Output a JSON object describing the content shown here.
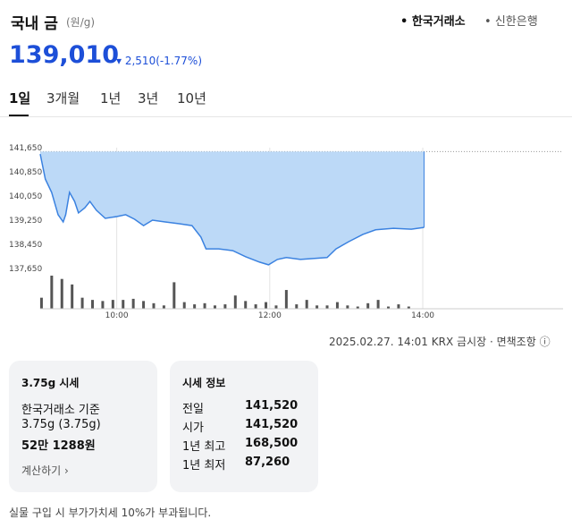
{
  "header": {
    "title": "국내 금",
    "unit": "(원/g)",
    "sources": [
      "한국거래소",
      "신한은행"
    ]
  },
  "price": {
    "value": "139,010",
    "change": "2,510",
    "change_pct": "(-1.77%)"
  },
  "tabs": [
    "1일",
    "3개월",
    "1년",
    "3년",
    "10년"
  ],
  "chart_data": {
    "type": "area",
    "color": "#3b82e0",
    "fill": "#bcd9f7",
    "x": [
      540,
      544,
      549,
      554,
      558,
      560,
      563,
      567,
      570,
      575,
      579,
      584,
      591,
      600,
      607,
      614,
      621,
      628,
      638,
      649,
      659,
      666,
      670,
      680,
      691,
      701,
      712,
      719,
      726,
      733,
      744,
      754,
      765,
      772,
      782,
      793,
      803,
      817,
      831,
      841
    ],
    "values": [
      141440,
      140610,
      140170,
      139430,
      139190,
      139430,
      140170,
      139870,
      139490,
      139660,
      139870,
      139580,
      139310,
      139370,
      139430,
      139280,
      139070,
      139250,
      139190,
      139130,
      139070,
      138690,
      138300,
      138300,
      138240,
      138040,
      137860,
      137770,
      137950,
      138010,
      137950,
      137980,
      138010,
      138300,
      138540,
      138780,
      138930,
      138980,
      138950,
      139010
    ],
    "reference_line": 141520,
    "xlim": [
      540,
      950
    ],
    "xticks": [
      {
        "value": 600,
        "label": "10:00"
      },
      {
        "value": 720,
        "label": "12:00"
      },
      {
        "value": 840,
        "label": "14:00"
      }
    ],
    "ylim": [
      137650,
      141650
    ],
    "yticks": [
      {
        "value": 137650,
        "label": "137,650"
      },
      {
        "value": 138450,
        "label": "138,450"
      },
      {
        "value": 139250,
        "label": "139,250"
      },
      {
        "value": 140050,
        "label": "140,050"
      },
      {
        "value": 140850,
        "label": "140,850"
      },
      {
        "value": 141650,
        "label": "141,650"
      }
    ],
    "volume": {
      "color": "#555555",
      "ylim": [
        0,
        30
      ],
      "x": [
        541,
        549,
        557,
        565,
        573,
        581,
        589,
        597,
        605,
        613,
        621,
        629,
        637,
        645,
        653,
        661,
        669,
        677,
        685,
        693,
        701,
        709,
        717,
        725,
        733,
        741,
        749,
        757,
        765,
        773,
        781,
        789,
        797,
        805,
        813,
        821,
        829
      ],
      "values": [
        10,
        30,
        27,
        22,
        10,
        8,
        7,
        8,
        8,
        9,
        7,
        5,
        3,
        24,
        6,
        4,
        5,
        3,
        4,
        12,
        7,
        4,
        6,
        3,
        17,
        4,
        8,
        3,
        3,
        6,
        3,
        2,
        5,
        8,
        2,
        4,
        2
      ]
    }
  },
  "footer": {
    "timestamp": "2025.02.27. 14:01",
    "market": "KRX 금시장",
    "disclaimer": "면책조항"
  },
  "card_left": {
    "title": "3.75g 시세",
    "basis": "한국거래소 기준",
    "weight": "3.75g (3.75g)",
    "price": "52만 1288원",
    "link": "계산하기"
  },
  "card_right": {
    "title": "시세 정보",
    "rows": [
      [
        "전일",
        "141,520"
      ],
      [
        "시가",
        "141,520"
      ],
      [
        "1년 최고",
        "168,500"
      ],
      [
        "1년 최저",
        "87,260"
      ]
    ]
  },
  "note": "실물 구입 시 부가가치세 10%가 부과됩니다."
}
